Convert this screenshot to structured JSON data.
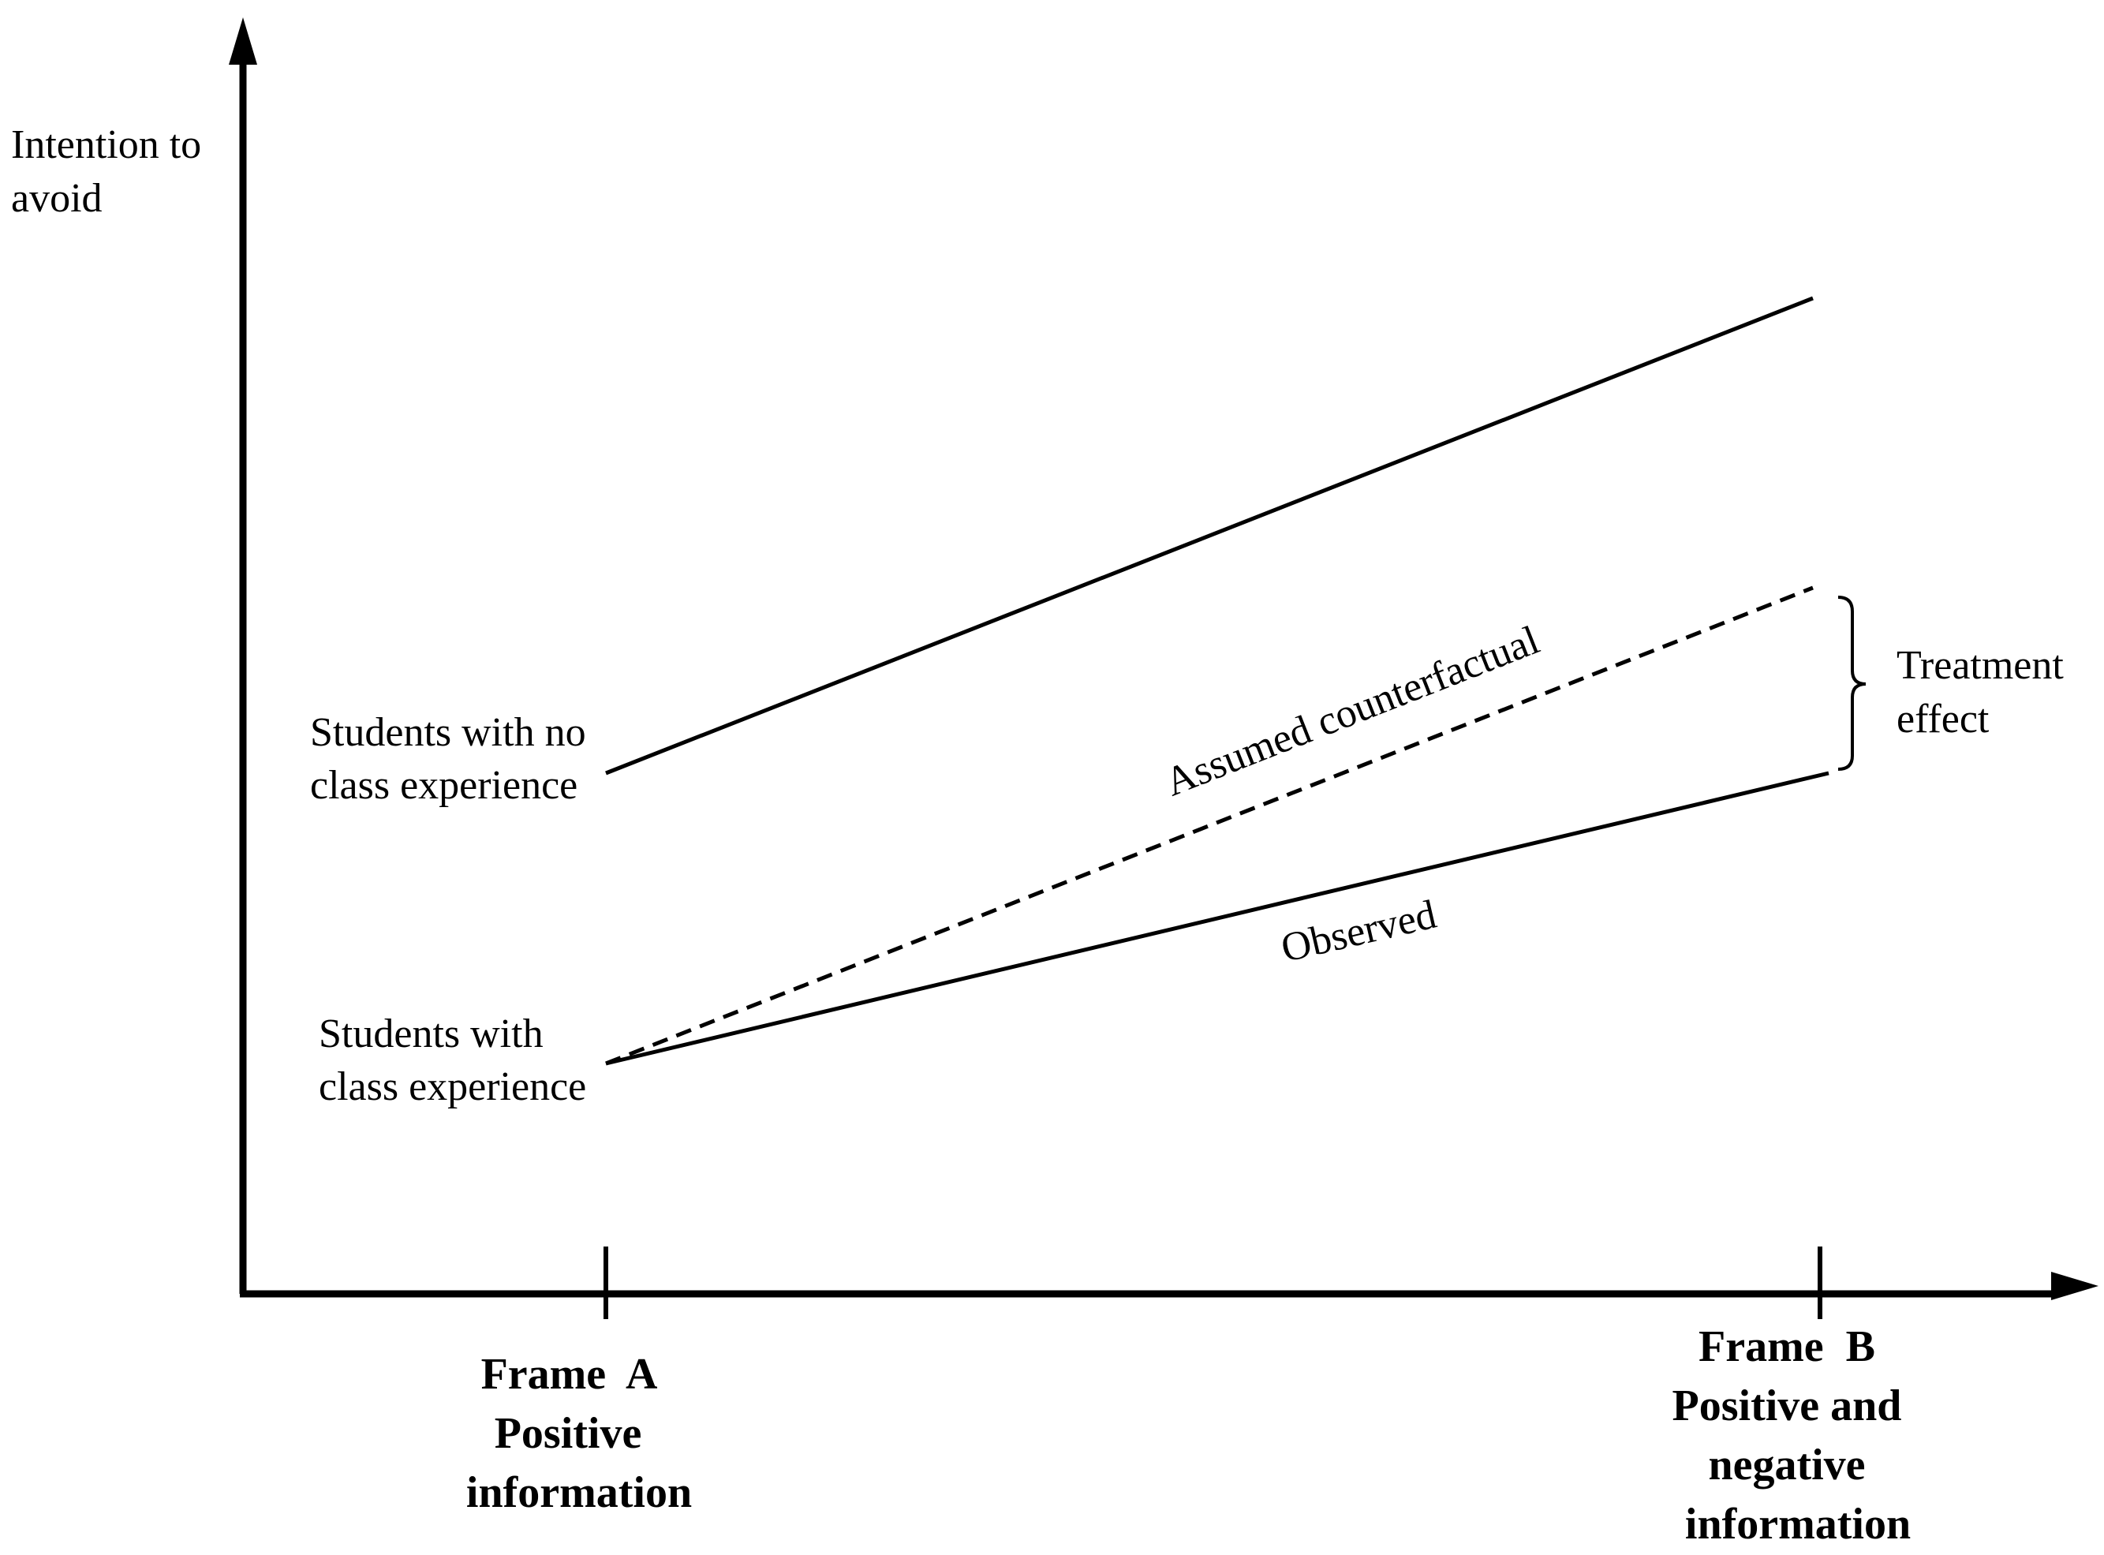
{
  "y_axis_label": [
    "Intention to",
    "avoid"
  ],
  "x_ticks": [
    {
      "lines": [
        "Frame  A",
        "Positive",
        "information"
      ]
    },
    {
      "lines": [
        "Frame  B",
        "Positive and",
        "negative",
        "information"
      ]
    }
  ],
  "groups": {
    "no_class": [
      "Students with no",
      "class experience"
    ],
    "with_class": [
      "Students with",
      "class experience"
    ]
  },
  "line_labels": {
    "counterfactual": "Assumed counterfactual",
    "observed": "Observed"
  },
  "bracket_label": [
    "Treatment",
    "effect"
  ],
  "colors": {
    "ink": "#000000",
    "background": "#ffffff"
  }
}
